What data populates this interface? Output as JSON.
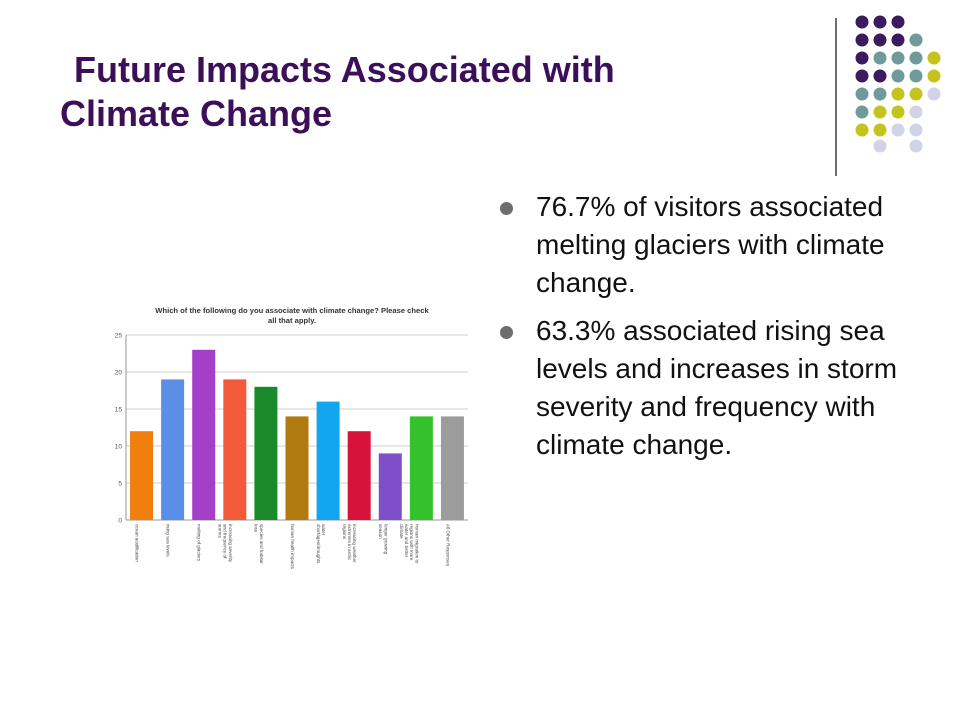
{
  "slide": {
    "title_line1": "Future Impacts Associated with",
    "title_line2": "Climate Change",
    "bullets": [
      "76.7% of visitors associated melting glaciers with climate change.",
      "63.3% associated rising sea levels and increases in storm severity and frequency with climate change."
    ],
    "colors": {
      "title": "#3b1058",
      "dot_purple": "#3b1a5e",
      "dot_teal": "#6f9a9c",
      "dot_olive": "#c6c21e",
      "dot_lavender": "#d3d3e8"
    }
  },
  "chart_data": {
    "type": "bar",
    "title": "Which of the following do you associate with climate change? Please check all that apply.",
    "categories": [
      "ocean acidification",
      "rising sea levels",
      "melting of glaciers",
      "increasing severity and frequency of storms",
      "species and habitat loss",
      "human health impacts",
      "water shortages/droughts",
      "increasing weather extremes in arctic regions",
      "longer growing season",
      "human migration to regions with more water and better climate",
      "All Other Responses"
    ],
    "values": [
      12,
      19,
      23,
      19,
      18,
      14,
      16,
      12,
      9,
      14,
      14
    ],
    "colors": [
      "#f07f0e",
      "#5b8ee6",
      "#a43fc7",
      "#f25a3a",
      "#1a8a2b",
      "#b07a10",
      "#13a6f0",
      "#d6133a",
      "#7e4fc9",
      "#33c22c",
      "#9c9c9c"
    ],
    "ylim": [
      0,
      25
    ],
    "yticks": [
      0,
      5,
      10,
      15,
      20,
      25
    ],
    "grid": true,
    "legend": "none"
  }
}
